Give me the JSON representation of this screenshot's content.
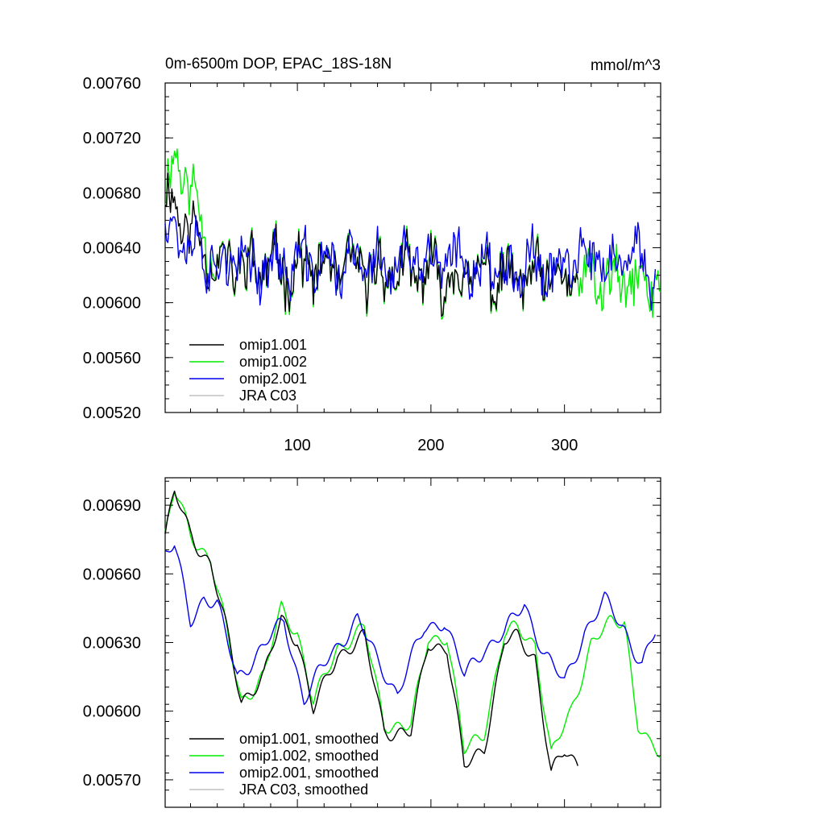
{
  "chart_data": [
    {
      "type": "line",
      "title_left": "0m-6500m DOP, EPAC_18S-18N",
      "title_right": "mmol/m^3",
      "xlim": [
        1,
        372
      ],
      "ylim": [
        0.0052,
        0.0076
      ],
      "x_ticks": [
        100,
        200,
        300
      ],
      "x_tick_labels": [
        "100",
        "200",
        "300"
      ],
      "y_ticks": [
        0.0052,
        0.0056,
        0.006,
        0.0064,
        0.0068,
        0.0072,
        0.0076
      ],
      "y_tick_labels": [
        "0.00520",
        "0.00560",
        "0.00600",
        "0.00640",
        "0.00680",
        "0.00720",
        "0.00760"
      ],
      "legend_position": "bottom-left",
      "series": [
        {
          "name": "omip1.001",
          "color": "#000000",
          "n": 310,
          "base": 0.00622,
          "amp": 0.00028,
          "trend": [
            [
              1,
              0.0068
            ],
            [
              40,
              0.00628
            ],
            [
              372,
              0.00612
            ]
          ],
          "seed": 11
        },
        {
          "name": "omip1.002",
          "color": "#00ee00",
          "n": 372,
          "base": 0.00622,
          "amp": 0.0003,
          "trend": [
            [
              1,
              0.0068
            ],
            [
              10,
              0.0071
            ],
            [
              40,
              0.00628
            ],
            [
              372,
              0.00612
            ]
          ],
          "seed": 11
        },
        {
          "name": "omip2.001",
          "color": "#0000ee",
          "n": 368,
          "base": 0.00628,
          "amp": 0.00028,
          "trend": [
            [
              1,
              0.0066
            ],
            [
              40,
              0.00628
            ],
            [
              372,
              0.00628
            ]
          ],
          "seed": 37
        },
        {
          "name": "JRA C03",
          "color": "#c0c0c0",
          "n": 0
        }
      ]
    },
    {
      "type": "line",
      "xlim": [
        1,
        372
      ],
      "ylim": [
        0.00558,
        0.00702
      ],
      "x_ticks": [
        100,
        200,
        300
      ],
      "y_ticks": [
        0.0057,
        0.006,
        0.0063,
        0.0066,
        0.0069
      ],
      "y_tick_labels": [
        "0.00570",
        "0.00600",
        "0.00630",
        "0.00660",
        "0.00690"
      ],
      "legend_position": "bottom-left",
      "series": [
        {
          "name": "omip1.001, smoothed",
          "color": "#000000",
          "n": 310,
          "key": [
            [
              1,
              0.00676
            ],
            [
              8,
              0.00695
            ],
            [
              20,
              0.00678
            ],
            [
              35,
              0.00664
            ],
            [
              45,
              0.0064
            ],
            [
              58,
              0.00605
            ],
            [
              75,
              0.00615
            ],
            [
              88,
              0.0064
            ],
            [
              100,
              0.00632
            ],
            [
              112,
              0.006
            ],
            [
              130,
              0.00625
            ],
            [
              150,
              0.00632
            ],
            [
              165,
              0.00592
            ],
            [
              185,
              0.0059
            ],
            [
              198,
              0.0063
            ],
            [
              212,
              0.00628
            ],
            [
              225,
              0.00575
            ],
            [
              240,
              0.00585
            ],
            [
              255,
              0.0063
            ],
            [
              265,
              0.00632
            ],
            [
              278,
              0.00624
            ],
            [
              290,
              0.00572
            ],
            [
              300,
              0.00582
            ],
            [
              310,
              0.00577
            ]
          ]
        },
        {
          "name": "omip1.002, smoothed",
          "color": "#00ee00",
          "n": 372,
          "key": [
            [
              1,
              0.00676
            ],
            [
              8,
              0.00696
            ],
            [
              20,
              0.00678
            ],
            [
              35,
              0.00666
            ],
            [
              45,
              0.0064
            ],
            [
              58,
              0.00605
            ],
            [
              75,
              0.00615
            ],
            [
              88,
              0.00645
            ],
            [
              100,
              0.00635
            ],
            [
              112,
              0.00603
            ],
            [
              130,
              0.00628
            ],
            [
              150,
              0.00636
            ],
            [
              165,
              0.00595
            ],
            [
              185,
              0.00593
            ],
            [
              198,
              0.00632
            ],
            [
              212,
              0.00633
            ],
            [
              225,
              0.00582
            ],
            [
              240,
              0.00592
            ],
            [
              255,
              0.00633
            ],
            [
              265,
              0.00636
            ],
            [
              278,
              0.0063
            ],
            [
              290,
              0.0058
            ],
            [
              305,
              0.006
            ],
            [
              320,
              0.0063
            ],
            [
              335,
              0.00638
            ],
            [
              345,
              0.0064
            ],
            [
              355,
              0.00595
            ],
            [
              363,
              0.00585
            ],
            [
              372,
              0.0058
            ]
          ]
        },
        {
          "name": "omip2.001, smoothed",
          "color": "#0000ee",
          "n": 368,
          "key": [
            [
              1,
              0.00668
            ],
            [
              8,
              0.00672
            ],
            [
              20,
              0.0064
            ],
            [
              30,
              0.0065
            ],
            [
              40,
              0.00646
            ],
            [
              55,
              0.00615
            ],
            [
              75,
              0.00628
            ],
            [
              90,
              0.0064
            ],
            [
              105,
              0.00605
            ],
            [
              125,
              0.00625
            ],
            [
              145,
              0.0064
            ],
            [
              160,
              0.00622
            ],
            [
              175,
              0.00608
            ],
            [
              195,
              0.00636
            ],
            [
              210,
              0.0064
            ],
            [
              225,
              0.00615
            ],
            [
              240,
              0.00628
            ],
            [
              255,
              0.00634
            ],
            [
              270,
              0.00647
            ],
            [
              285,
              0.00625
            ],
            [
              300,
              0.00612
            ],
            [
              315,
              0.00635
            ],
            [
              330,
              0.00648
            ],
            [
              345,
              0.00636
            ],
            [
              358,
              0.0062
            ],
            [
              368,
              0.00634
            ]
          ]
        },
        {
          "name": "JRA C03, smoothed",
          "color": "#c0c0c0",
          "n": 0
        }
      ]
    }
  ]
}
